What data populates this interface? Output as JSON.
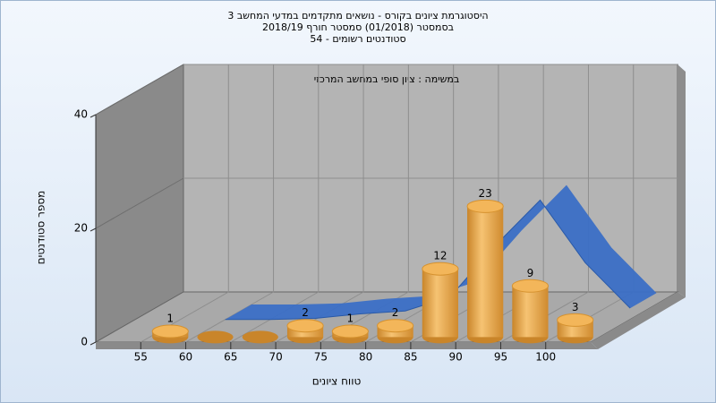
{
  "chart_data": {
    "type": "histogram",
    "title": [
      "היסטוגרמת ציונים בקורס - נושאים מתקדמים במדעי המחשב 3",
      "בסמסטר  (01/2018)  סמסטר חורף 2018/19",
      "סטודנטים רשומים - 54"
    ],
    "annotation": "במשימה : ציון סופי במחשב המרכזי",
    "x_label": "טווח ציונים",
    "y_label": "מספר סטודנטים",
    "bins": [
      55,
      60,
      65,
      70,
      75,
      80,
      85,
      90,
      95,
      100,
      105
    ],
    "counts": [
      1,
      0,
      0,
      2,
      1,
      2,
      12,
      23,
      9,
      3
    ],
    "color": "#e8a13c",
    "xlim": [
      50,
      105
    ],
    "xticks": [
      55,
      60,
      65,
      70,
      75,
      80,
      85,
      90,
      95,
      100
    ],
    "ylim": [
      0,
      40
    ],
    "yticks": [
      0,
      20,
      40
    ],
    "grid": true,
    "distribution_curve": {
      "color": "#3b6fc6",
      "x": [
        60,
        65,
        70,
        75,
        80,
        85,
        90,
        95,
        100,
        105
      ],
      "values": [
        0,
        0,
        0.2,
        1,
        1.5,
        4,
        13,
        21,
        10,
        2
      ]
    }
  }
}
